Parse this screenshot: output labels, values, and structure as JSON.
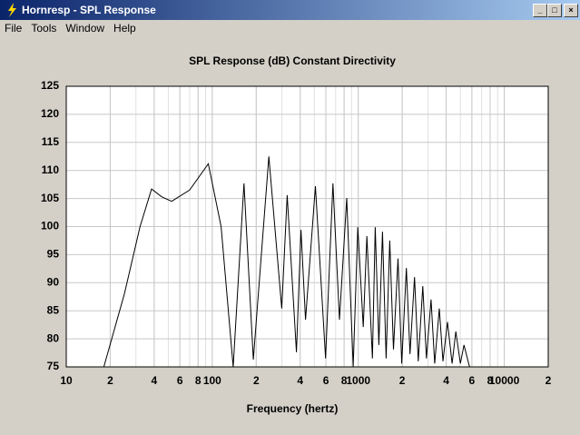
{
  "window": {
    "title": "Hornresp - SPL Response",
    "menu": [
      "File",
      "Tools",
      "Window",
      "Help"
    ]
  },
  "chart_data": {
    "type": "line",
    "title": "SPL Response (dB)   Constant Directivity",
    "x_label": "Frequency (hertz)",
    "xscale": "log",
    "xlim": [
      10,
      20000
    ],
    "ylim": [
      75,
      125
    ],
    "xticks": [
      10,
      {
        "value": 20,
        "label": "2"
      },
      {
        "value": 40,
        "label": "4"
      },
      {
        "value": 60,
        "label": "6"
      },
      {
        "value": 80,
        "label": "8"
      },
      100,
      {
        "value": 200,
        "label": "2"
      },
      {
        "value": 400,
        "label": "4"
      },
      {
        "value": 600,
        "label": "6"
      },
      {
        "value": 800,
        "label": "8"
      },
      1000,
      {
        "value": 2000,
        "label": "2"
      },
      {
        "value": 4000,
        "label": "4"
      },
      {
        "value": 6000,
        "label": "6"
      },
      {
        "value": 8000,
        "label": "8"
      },
      10000,
      {
        "value": 20000,
        "label": "2"
      }
    ],
    "yticks": [
      75,
      80,
      85,
      90,
      95,
      100,
      105,
      110,
      115,
      120,
      125
    ],
    "grid": true,
    "minor_grid": true,
    "color": "#000000",
    "x": [
      18.1,
      25,
      32,
      38.4,
      45,
      52.7,
      70,
      94,
      115,
      139,
      165,
      191,
      244,
      299,
      326,
      377,
      405,
      435,
      509,
      597,
      671,
      743,
      834,
      923,
      992,
      1081,
      1146,
      1250,
      1306,
      1384,
      1466,
      1552,
      1644,
      1741,
      1872,
      1984,
      2135,
      2260,
      2428,
      2575,
      2766,
      2930,
      3149,
      3339,
      3589,
      3802,
      4083,
      4395,
      4656,
      5000,
      5297,
      5781
    ],
    "values": [
      75,
      88,
      100,
      106.7,
      105.3,
      104.5,
      106.5,
      111.2,
      100,
      75,
      107.7,
      76.3,
      112.5,
      85.4,
      105.6,
      77.6,
      99.4,
      83.4,
      107.2,
      76.5,
      107.7,
      83.4,
      105.1,
      75,
      99.9,
      82.1,
      98.3,
      76.5,
      99.9,
      78.9,
      99.1,
      76.5,
      97.5,
      78.1,
      94.3,
      75.6,
      92.6,
      77.3,
      91,
      76,
      89.4,
      76.5,
      87,
      75.6,
      85.4,
      76,
      83,
      75.6,
      81.3,
      75.6,
      78.9,
      75
    ]
  }
}
